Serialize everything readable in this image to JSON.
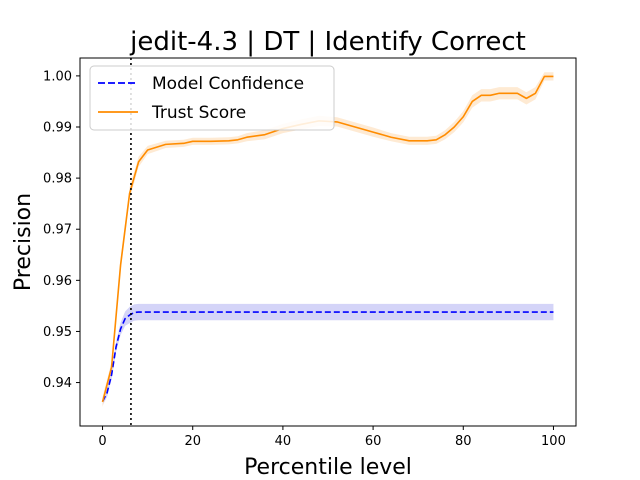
{
  "chart_data": {
    "type": "line",
    "title": "jedit-4.3 | DT | Identify Correct",
    "xlabel": "Percentile level",
    "ylabel": "Precision",
    "xlim": [
      -5,
      105
    ],
    "ylim": [
      0.9315,
      1.0035
    ],
    "xticks": [
      0,
      20,
      40,
      60,
      80,
      100
    ],
    "yticks": [
      0.94,
      0.95,
      0.96,
      0.97,
      0.98,
      0.99,
      1.0
    ],
    "ytick_labels": [
      "0.94",
      "0.95",
      "0.96",
      "0.97",
      "0.98",
      "0.99",
      "1.00"
    ],
    "vline_x": 6.3,
    "legend": {
      "position": "top-left",
      "entries": [
        "Model Confidence",
        "Trust Score"
      ]
    },
    "series": [
      {
        "name": "Model Confidence",
        "color": "#0000ff",
        "style": "dashed",
        "band_color": "#c5c5f5",
        "x": [
          0,
          1,
          2,
          3,
          4,
          5,
          6,
          7,
          8,
          100
        ],
        "y": [
          0.9363,
          0.938,
          0.9415,
          0.947,
          0.9505,
          0.9525,
          0.9532,
          0.9537,
          0.9538,
          0.9538
        ],
        "band": [
          0.0008,
          0.0008,
          0.0009,
          0.001,
          0.0012,
          0.0014,
          0.0016,
          0.0016,
          0.0016,
          0.0016
        ]
      },
      {
        "name": "Trust Score",
        "color": "#ff8c00",
        "style": "solid",
        "band_color": "#fde3c4",
        "x": [
          0,
          2,
          4,
          6,
          8,
          10,
          14,
          18,
          20,
          24,
          28,
          30,
          32,
          36,
          40,
          44,
          48,
          52,
          56,
          60,
          64,
          68,
          72,
          74,
          76,
          78,
          80,
          82,
          84,
          86,
          88,
          90,
          92,
          94,
          96,
          98,
          100
        ],
        "y": [
          0.9362,
          0.943,
          0.963,
          0.977,
          0.9832,
          0.9855,
          0.9866,
          0.9868,
          0.9872,
          0.9872,
          0.9873,
          0.9875,
          0.988,
          0.9885,
          0.9897,
          0.9905,
          0.9912,
          0.991,
          0.99,
          0.989,
          0.988,
          0.9873,
          0.9873,
          0.9875,
          0.9885,
          0.99,
          0.992,
          0.995,
          0.9962,
          0.9962,
          0.9966,
          0.9966,
          0.9966,
          0.9956,
          0.9966,
          0.9999,
          0.9999
        ],
        "band": [
          0.001,
          0.001,
          0.0012,
          0.0012,
          0.001,
          0.0008,
          0.0007,
          0.0007,
          0.0007,
          0.0007,
          0.0007,
          0.0007,
          0.0008,
          0.0009,
          0.0009,
          0.001,
          0.001,
          0.0009,
          0.0009,
          0.0009,
          0.0008,
          0.0008,
          0.0008,
          0.0008,
          0.0009,
          0.001,
          0.0011,
          0.0012,
          0.0012,
          0.0012,
          0.0012,
          0.0012,
          0.0012,
          0.0012,
          0.0012,
          0.0008,
          0.0008
        ]
      }
    ]
  }
}
